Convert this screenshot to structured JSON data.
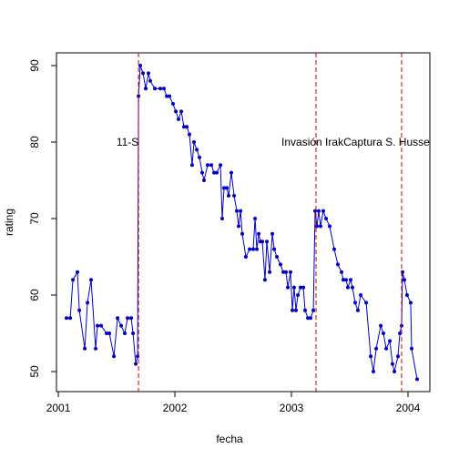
{
  "chart_data": {
    "type": "line",
    "xlabel": "fecha",
    "ylabel": "rating",
    "color": "#0000cc",
    "x": [
      2001.07,
      2001.102,
      2001.125,
      2001.164,
      2001.18,
      2001.227,
      2001.25,
      2001.281,
      2001.32,
      2001.336,
      2001.367,
      2001.414,
      2001.438,
      2001.477,
      2001.508,
      2001.539,
      2001.57,
      2001.594,
      2001.625,
      2001.641,
      2001.664,
      2001.68,
      2001.688,
      2001.703,
      2001.727,
      2001.75,
      2001.773,
      2001.789,
      2001.828,
      2001.875,
      2001.906,
      2001.93,
      2001.953,
      2001.984,
      2002.008,
      2002.031,
      2002.055,
      2002.078,
      2002.102,
      2002.125,
      2002.148,
      2002.164,
      2002.188,
      2002.211,
      2002.234,
      2002.25,
      2002.281,
      2002.313,
      2002.336,
      2002.359,
      2002.391,
      2002.406,
      2002.422,
      2002.445,
      2002.461,
      2002.484,
      2002.508,
      2002.531,
      2002.547,
      2002.563,
      2002.578,
      2002.609,
      2002.641,
      2002.672,
      2002.688,
      2002.703,
      2002.719,
      2002.734,
      2002.75,
      2002.773,
      2002.789,
      2002.813,
      2002.836,
      2002.852,
      2002.875,
      2002.906,
      2002.93,
      2002.953,
      2002.969,
      2002.992,
      2003.008,
      2003.023,
      2003.039,
      2003.055,
      2003.078,
      2003.102,
      2003.117,
      2003.141,
      2003.164,
      2003.188,
      2003.203,
      2003.219,
      2003.234,
      2003.25,
      2003.273,
      2003.297,
      2003.328,
      2003.367,
      2003.398,
      2003.43,
      2003.445,
      2003.469,
      2003.484,
      2003.508,
      2003.523,
      2003.547,
      2003.57,
      2003.594,
      2003.641,
      2003.68,
      2003.703,
      2003.727,
      2003.766,
      2003.789,
      2003.813,
      2003.844,
      2003.867,
      2003.883,
      2003.914,
      2003.93,
      2003.945,
      2003.953,
      2003.969,
      2003.992,
      2004.023,
      2004.031,
      2004.078
    ],
    "values": [
      57,
      57,
      62,
      63,
      58,
      53,
      59,
      62,
      53,
      56,
      56,
      55,
      55,
      52,
      57,
      56,
      55,
      57,
      57,
      55,
      51,
      52,
      86,
      90,
      89,
      87,
      89,
      88,
      87,
      87,
      87,
      86,
      86,
      85,
      84,
      83,
      84,
      82,
      82,
      81,
      77,
      80,
      79,
      78,
      76,
      75,
      77,
      77,
      76,
      76,
      77,
      70,
      74,
      74,
      73,
      76,
      73,
      71,
      69,
      71,
      68,
      65,
      66,
      66,
      70,
      66,
      68,
      67,
      67,
      62,
      67,
      63,
      68,
      66,
      65,
      64,
      63,
      63,
      61,
      63,
      58,
      61,
      58,
      60,
      61,
      61,
      58,
      57,
      57,
      58,
      71,
      69,
      71,
      69,
      71,
      70,
      69,
      66,
      64,
      63,
      62,
      62,
      61,
      62,
      61,
      59,
      58,
      60,
      59,
      52,
      50,
      53,
      56,
      55,
      53,
      54,
      51,
      50,
      52,
      55,
      56,
      63,
      62,
      60,
      59,
      53,
      49
    ],
    "xlim": [
      2000.984,
      2004.1875
    ],
    "ylim": [
      47.38,
      91.67
    ],
    "xticks": [
      2001,
      2002,
      2003,
      2004
    ],
    "yticks": [
      50,
      60,
      70,
      80,
      90
    ],
    "vlines": [
      {
        "x": 2001.688,
        "color": "#cc0000"
      },
      {
        "x": 2003.211,
        "color": "#cc0000"
      },
      {
        "x": 2003.945,
        "color": "#cc0000"
      }
    ],
    "annotations": [
      {
        "text": "11-S",
        "x": 2001.594,
        "y": 80
      },
      {
        "text": "Invasión Irak",
        "x": 2003.18,
        "y": 80
      },
      {
        "text": "Captura S. Husse",
        "x": 2003.816,
        "y": 80
      }
    ]
  }
}
